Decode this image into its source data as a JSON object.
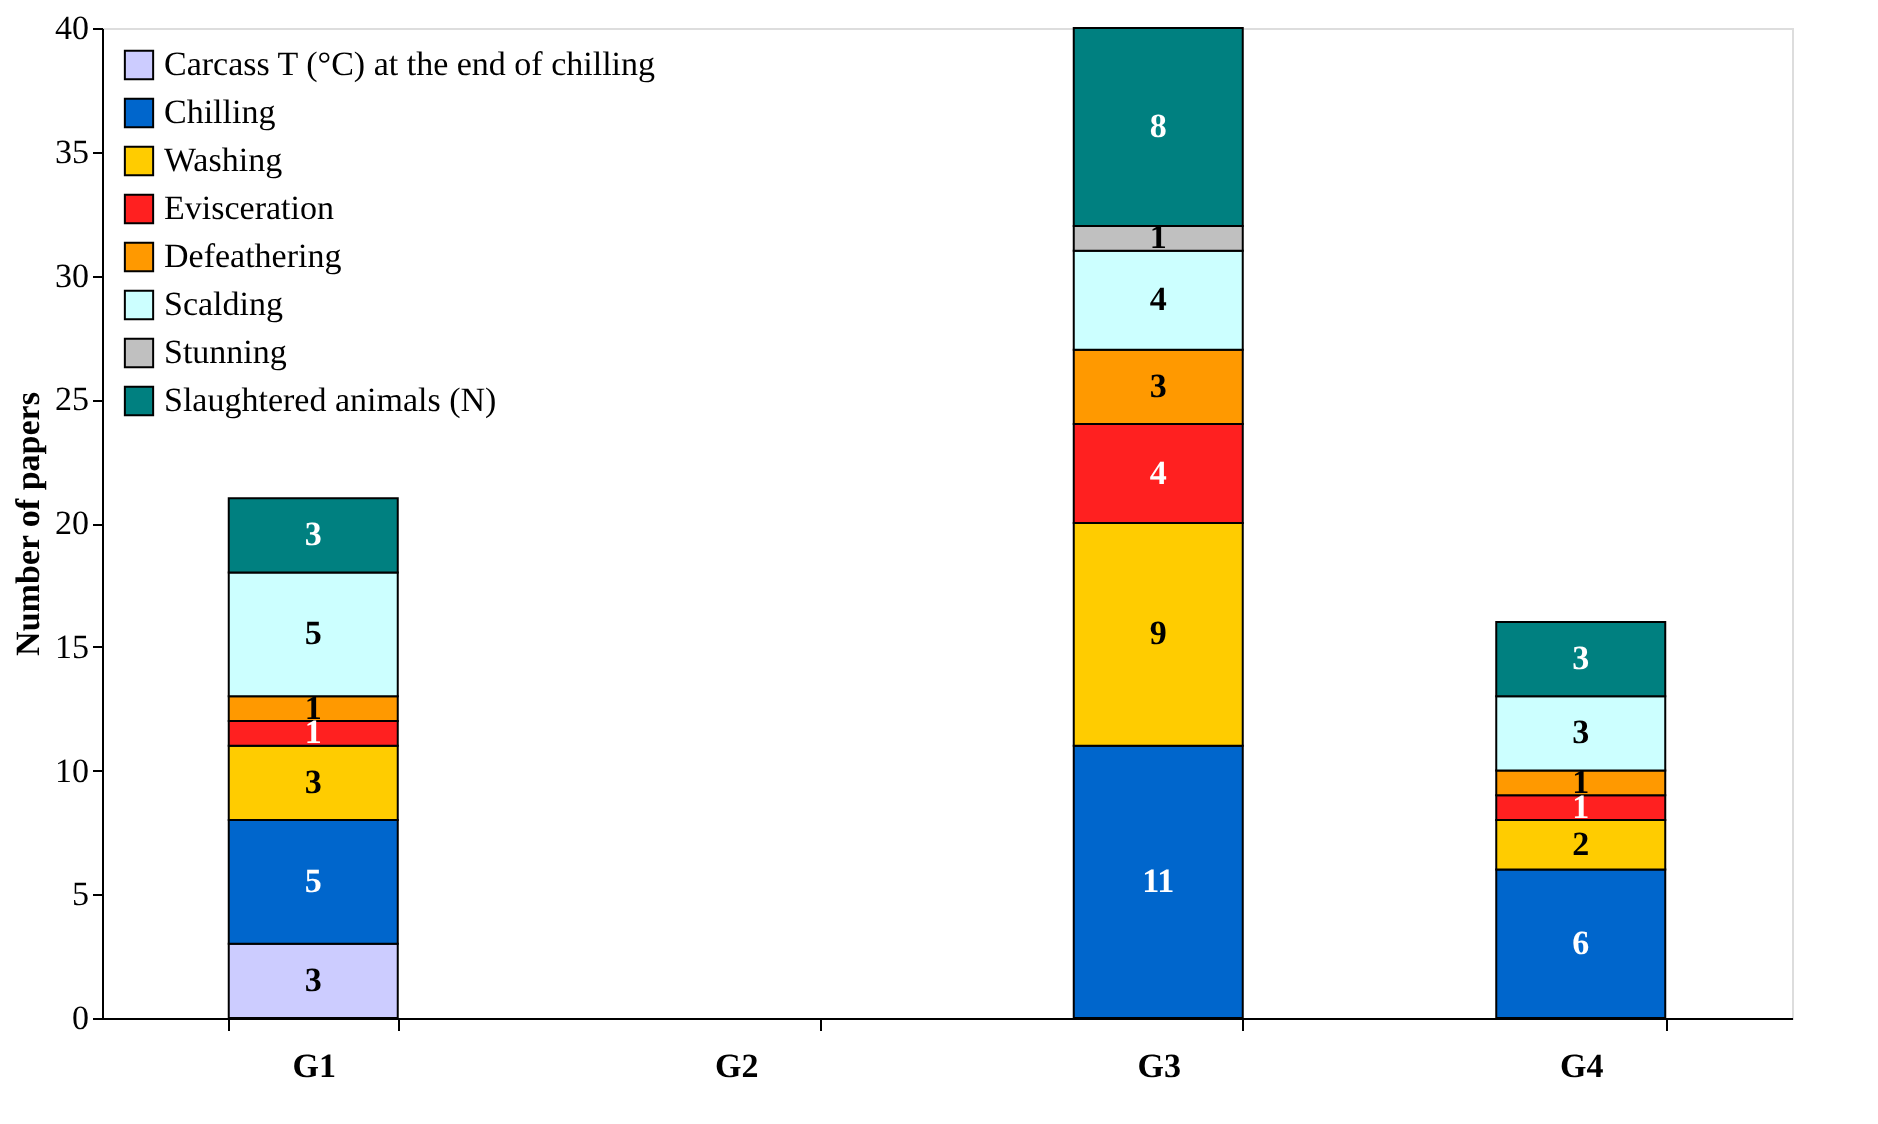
{
  "chart_data": {
    "type": "bar",
    "stacked": true,
    "ylabel": "Number of papers",
    "categories": [
      "G1",
      "G2",
      "G3",
      "G4"
    ],
    "ylim": [
      0,
      40
    ],
    "yticks": [
      0,
      5,
      10,
      15,
      20,
      25,
      30,
      35,
      40
    ],
    "grid": false,
    "legend": "top left",
    "data_labels": true,
    "series": [
      {
        "name": "Carcass T (°C) at the end of chilling",
        "color": "#ccccff",
        "values": [
          3,
          null,
          null,
          null
        ]
      },
      {
        "name": "Chilling",
        "color": "#0066cc",
        "values": [
          5,
          null,
          11,
          6
        ]
      },
      {
        "name": "Washing",
        "color": "#ffcc00",
        "values": [
          3,
          null,
          9,
          2
        ]
      },
      {
        "name": "Evisceration",
        "color": "#ff2020",
        "values": [
          1,
          null,
          4,
          1
        ]
      },
      {
        "name": "Defeathering",
        "color": "#ff9900",
        "values": [
          1,
          null,
          3,
          1
        ]
      },
      {
        "name": "Scalding",
        "color": "#ccffff",
        "values": [
          5,
          null,
          4,
          3
        ]
      },
      {
        "name": "Stunning",
        "color": "#c0c0c0",
        "values": [
          null,
          null,
          1,
          null
        ]
      },
      {
        "name": "Slaughtered animals (N)",
        "color": "#008080",
        "values": [
          3,
          null,
          8,
          3
        ]
      }
    ]
  }
}
